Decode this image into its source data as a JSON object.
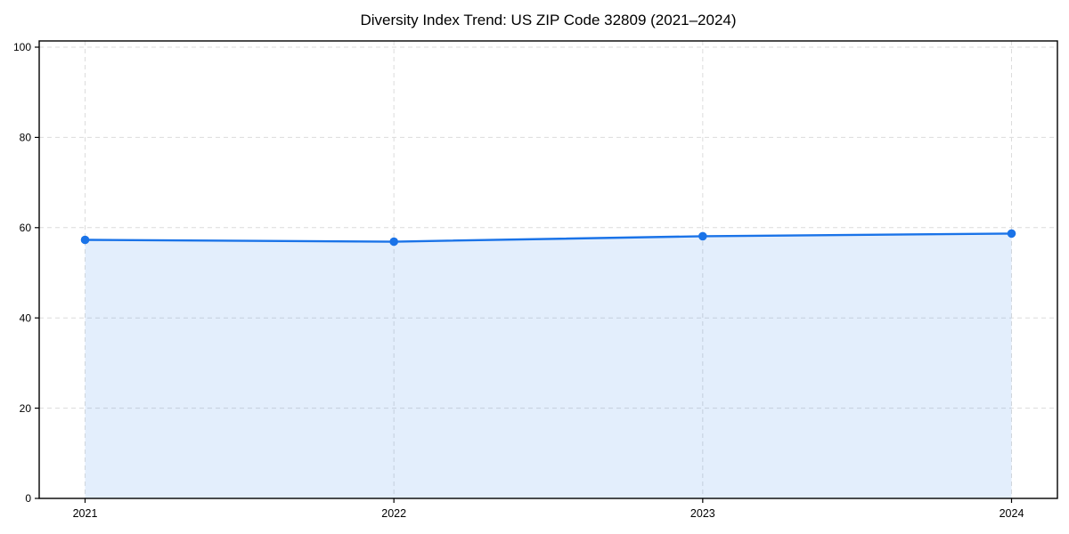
{
  "chart_data": {
    "type": "area",
    "title": "Diversity Index Trend: US ZIP Code 32809 (2021–2024)",
    "categories": [
      "2021",
      "2022",
      "2023",
      "2024"
    ],
    "x": [
      2021,
      2022,
      2023,
      2024
    ],
    "values": [
      57.3,
      56.9,
      58.1,
      58.7
    ],
    "series_label": "Diversity Index",
    "xlabel": "",
    "ylabel": "",
    "ylim": [
      0,
      100
    ],
    "yticks": [
      0,
      20,
      40,
      60,
      80,
      100
    ],
    "grid": true,
    "grid_style": "dashed",
    "legend": "none",
    "marker": "circle",
    "colors": {
      "line": "#1a73e8",
      "marker": "#1a73e8",
      "area": "#1a73e8",
      "area_opacity": 0.12,
      "grid": "#dcdcdc",
      "spine": "#000000",
      "text": "#000000",
      "background": "#ffffff"
    }
  }
}
